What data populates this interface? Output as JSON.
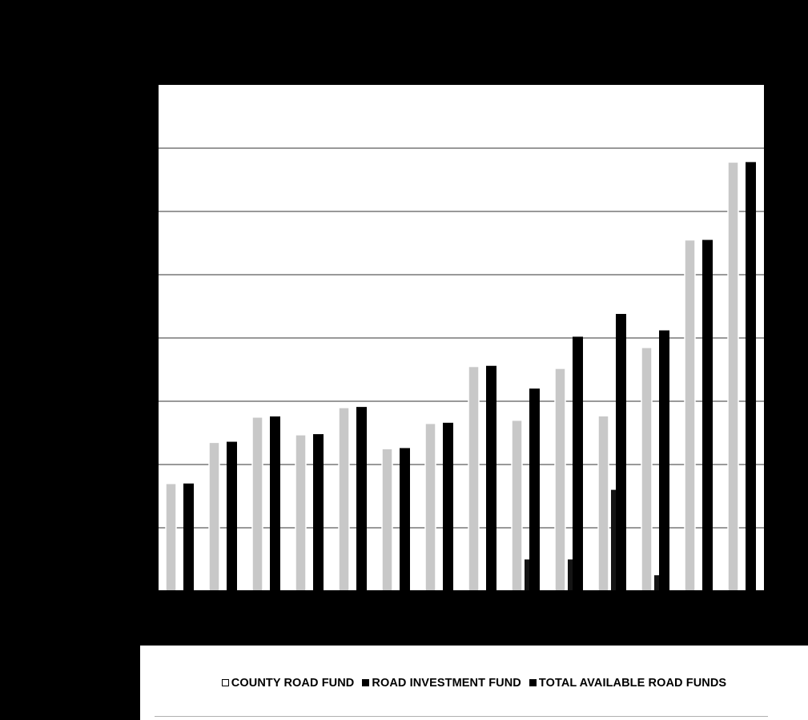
{
  "chart_data": {
    "type": "bar",
    "categories": [
      "",
      "",
      "",
      "",
      "",
      "",
      "",
      "",
      "",
      "",
      "",
      "",
      "",
      ""
    ],
    "series": [
      {
        "name": "COUNTY ROAD FUND",
        "values": [
          1.7,
          2.35,
          2.75,
          2.47,
          2.9,
          2.25,
          2.65,
          3.55,
          2.7,
          3.52,
          2.77,
          3.85,
          5.55,
          6.78
        ]
      },
      {
        "name": "ROAD INVESTMENT FUND",
        "values": [
          0,
          0,
          0,
          0,
          0,
          0,
          0,
          0,
          0.5,
          0.5,
          1.6,
          0.25,
          0,
          0
        ]
      },
      {
        "name": "TOTAL AVAILABLE ROAD FUNDS",
        "values": [
          1.7,
          2.36,
          2.76,
          2.48,
          2.91,
          2.26,
          2.66,
          3.56,
          3.2,
          4.02,
          4.38,
          4.12,
          5.55,
          6.78
        ]
      }
    ],
    "title": "",
    "xlabel": "",
    "ylabel": "",
    "ylim": [
      0,
      8
    ],
    "y_gridlines": [
      1,
      2,
      3,
      4,
      5,
      6,
      7
    ],
    "grid": true,
    "legend": "bottom",
    "colors": {
      "county_fill": "#c8c8c8",
      "county_stroke": "#ffffff",
      "rif_fill": "#141414",
      "total_fill": "#000000",
      "plot_bg": "#ffffff",
      "frame_bg": "#000000",
      "gridline": "#333333"
    }
  },
  "legend": {
    "items": [
      {
        "label": "COUNTY ROAD FUND",
        "swatch": "hollow"
      },
      {
        "label": "ROAD INVESTMENT FUND",
        "swatch": "solid"
      },
      {
        "label": "TOTAL AVAILABLE ROAD FUNDS",
        "swatch": "solid"
      }
    ]
  }
}
